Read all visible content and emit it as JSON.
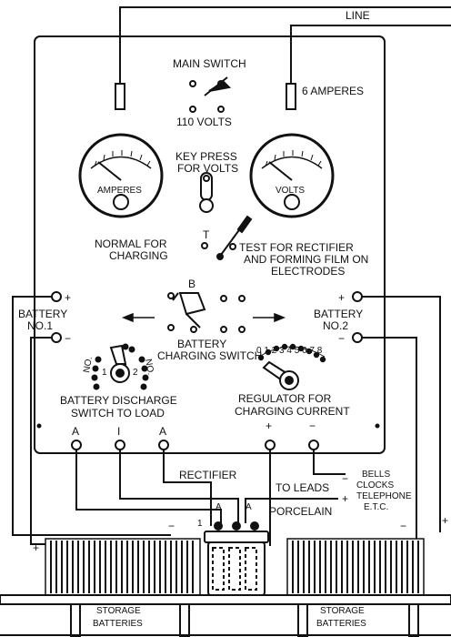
{
  "labels": {
    "line": "LINE",
    "main_switch": "MAIN SWITCH",
    "volts_110": "110 VOLTS",
    "amperes_6": "6 AMPERES",
    "key_press_1": "KEY PRESS",
    "key_press_2": "FOR VOLTS",
    "amperes_meter": "AMPERES",
    "volts_meter": "VOLTS",
    "normal_1": "NORMAL FOR",
    "normal_2": "CHARGING",
    "t_label": "T",
    "test_1": "TEST FOR RECTIFIER",
    "test_2": "AND FORMING FILM ON",
    "test_3": "ELECTRODES",
    "b_label": "B",
    "battery1_plus": "+",
    "battery1_1": "BATTERY",
    "battery1_2": "NO.1",
    "battery1_minus": "−",
    "battery2_plus": "+",
    "battery2_1": "BATTERY",
    "battery2_2": "NO.2",
    "battery2_minus": "−",
    "charging_switch_1": "BATTERY",
    "charging_switch_2": "CHARGING SWITCH",
    "no1_arc": "NO.",
    "one": "1",
    "no2_arc": "NO.",
    "two": "2",
    "regulator_scale": "0 1 2 3 4 5 6 7 8",
    "discharge_1": "BATTERY DISCHARGE",
    "discharge_2": "SWITCH TO LOAD",
    "regulator_1": "REGULATOR FOR",
    "regulator_2": "CHARGING CURRENT",
    "term_a_left": "A",
    "term_i": "I",
    "term_a_right": "A",
    "term_plus": "+",
    "term_minus": "−",
    "rectifier": "RECTIFIER",
    "rect_a1": "A",
    "rect_a2": "A",
    "rect_1": "1",
    "porcelain": "PORCELAIN",
    "to_leads": "TO LEADS",
    "leads_minus": "−",
    "leads_plus": "+",
    "bells": "BELLS",
    "clocks": "CLOCKS",
    "telephone": "TELEPHONE",
    "etc": "E.T.C.",
    "left_bank_minus": "−",
    "left_bank_plus": "+",
    "right_bank_minus": "−",
    "right_edge_plus": "+",
    "storage_left_1": "STORAGE",
    "storage_left_2": "BATTERIES",
    "storage_right_1": "STORAGE",
    "storage_right_2": "BATTERIES"
  }
}
